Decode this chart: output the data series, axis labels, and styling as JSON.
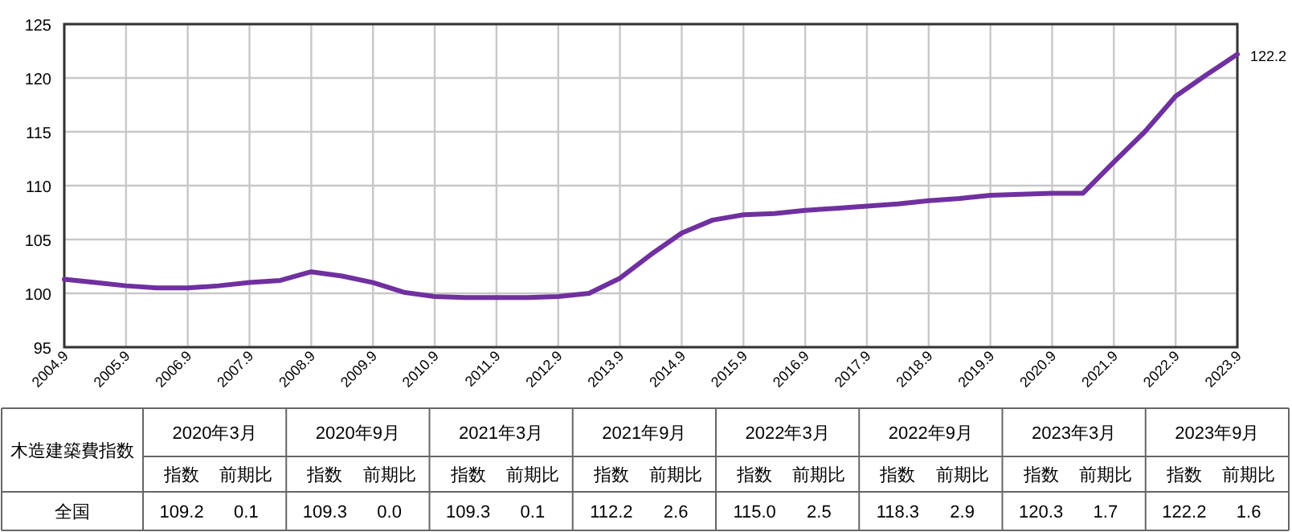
{
  "chart_data": {
    "type": "line",
    "categories": [
      "2004.9",
      null,
      "2005.9",
      null,
      "2006.9",
      null,
      "2007.9",
      null,
      "2008.9",
      null,
      "2009.9",
      null,
      "2010.9",
      null,
      "2011.9",
      null,
      "2012.9",
      null,
      "2013.9",
      null,
      "2014.9",
      null,
      "2015.9",
      null,
      "2016.9",
      null,
      "2017.9",
      null,
      "2018.9",
      null,
      "2019.9",
      null,
      "2020.9",
      null,
      "2021.9",
      null,
      "2022.9",
      null,
      "2023.9"
    ],
    "series": [
      {
        "color": "#7030a0",
        "values": [
          101.3,
          101.0,
          100.7,
          100.5,
          100.5,
          100.7,
          101.0,
          101.2,
          102.0,
          101.6,
          101.0,
          100.1,
          99.7,
          99.6,
          99.6,
          99.6,
          99.7,
          100.0,
          101.4,
          103.6,
          105.6,
          106.8,
          107.3,
          107.4,
          107.7,
          107.9,
          108.1,
          108.3,
          108.6,
          108.8,
          109.1,
          109.2,
          109.3,
          109.3,
          112.2,
          115.0,
          118.3,
          120.3,
          122.2
        ],
        "value_labels": [
          null,
          null,
          null,
          null,
          null,
          null,
          null,
          null,
          null,
          null,
          null,
          null,
          null,
          null,
          null,
          null,
          null,
          null,
          null,
          null,
          null,
          null,
          null,
          null,
          null,
          null,
          null,
          null,
          null,
          null,
          null,
          null,
          null,
          null,
          null,
          null,
          null,
          null,
          "122.2"
        ]
      }
    ],
    "ylim": [
      95,
      125
    ],
    "yticks": [
      95,
      100,
      105,
      110,
      115,
      120,
      125
    ],
    "grid": true,
    "marker": "none",
    "line_style": "solid",
    "annotations": [
      "木造建築費指数",
      "全国",
      "2020年3月",
      "2020年9月",
      "2021年3月",
      "2021年9月",
      "2022年3月",
      "2022年9月",
      "2023年3月",
      "2023年9月",
      "指数",
      "前期比",
      "指数",
      "前期比",
      "指数",
      "前期比",
      "指数",
      "前期比",
      "指数",
      "前期比",
      "指数",
      "前期比",
      "指数",
      "前期比",
      "指数",
      "前期比",
      "109.2",
      "0.1",
      "109.3",
      "0.0",
      "109.3",
      "0.1",
      "112.2",
      "2.6",
      "115.0",
      "2.5",
      "118.3",
      "2.9",
      "120.3",
      "1.7",
      "122.2",
      "1.6"
    ]
  }
}
